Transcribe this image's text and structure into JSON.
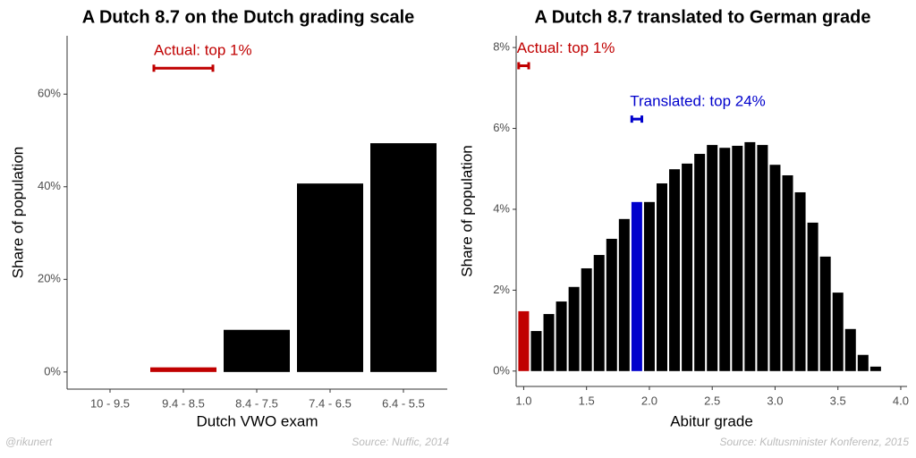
{
  "chart_data": [
    {
      "type": "bar",
      "title": "A Dutch 8.7 on the Dutch grading scale",
      "xlabel": "Dutch VWO exam",
      "ylabel": "Share of population",
      "categories": [
        "10 - 9.5",
        "9.4 - 8.5",
        "8.4 - 7.5",
        "7.4 - 6.5",
        "6.4 - 5.5"
      ],
      "values": [
        0,
        1,
        9.1,
        40.7,
        49.4
      ],
      "colors": [
        "#000000",
        "#c00000",
        "#000000",
        "#000000",
        "#000000"
      ],
      "ylim": [
        -3.7,
        72.6
      ],
      "yticks": [
        {
          "value": 0,
          "label": "0%"
        },
        {
          "value": 20,
          "label": "20%"
        },
        {
          "value": 40,
          "label": "40%"
        },
        {
          "value": 60,
          "label": "60%"
        }
      ],
      "annotations": [
        {
          "text": "Actual: top 1%",
          "color": "#c00000",
          "category": "9.4 - 8.5",
          "y": 65.6
        }
      ]
    },
    {
      "type": "histbar",
      "title": "A Dutch 8.7 translated to German grade",
      "xlabel": "Abitur grade",
      "ylabel": "Share of population",
      "x": [
        1.0,
        1.1,
        1.2,
        1.3,
        1.4,
        1.5,
        1.6,
        1.7,
        1.8,
        1.9,
        2.0,
        2.1,
        2.2,
        2.3,
        2.4,
        2.5,
        2.6,
        2.7,
        2.8,
        2.9,
        3.0,
        3.1,
        3.2,
        3.3,
        3.4,
        3.5,
        3.6,
        3.7,
        3.8
      ],
      "values": [
        1.48,
        0.99,
        1.41,
        1.72,
        2.08,
        2.54,
        2.87,
        3.27,
        3.76,
        4.18,
        4.18,
        4.64,
        4.99,
        5.13,
        5.37,
        5.59,
        5.52,
        5.57,
        5.66,
        5.59,
        5.1,
        4.84,
        4.42,
        3.67,
        2.83,
        1.94,
        1.04,
        0.4,
        0.11
      ],
      "colors": [
        "#c00000",
        "#000000",
        "#000000",
        "#000000",
        "#000000",
        "#000000",
        "#000000",
        "#000000",
        "#000000",
        "#0000cc",
        "#000000",
        "#000000",
        "#000000",
        "#000000",
        "#000000",
        "#000000",
        "#000000",
        "#000000",
        "#000000",
        "#000000",
        "#000000",
        "#000000",
        "#000000",
        "#000000",
        "#000000",
        "#000000",
        "#000000",
        "#000000",
        "#000000"
      ],
      "xlim": [
        0.94,
        4.05
      ],
      "ylim": [
        -0.38,
        8.29
      ],
      "xticks": [
        {
          "value": 1,
          "label": "1.0"
        },
        1.5,
        {
          "value": 2,
          "label": "2.0"
        },
        2.5,
        {
          "value": 3,
          "label": "3.0"
        },
        3.5,
        {
          "value": 4,
          "label": "4.0"
        }
      ],
      "yticks": [
        {
          "value": 0,
          "label": "0%"
        },
        {
          "value": 2,
          "label": "2%"
        },
        {
          "value": 4,
          "label": "4%"
        },
        {
          "value": 6,
          "label": "6%"
        },
        {
          "value": 8,
          "label": "8%"
        }
      ],
      "annotations": [
        {
          "text": "Actual: top 1%",
          "color": "#c00000",
          "x": [
            0.96,
            1.04
          ],
          "y": 7.55
        },
        {
          "text": "Translated: top 24%",
          "color": "#0000cc",
          "x": [
            1.86,
            1.94
          ],
          "y": 6.23
        }
      ]
    }
  ],
  "footer": {
    "author": "@rikunert",
    "sources": [
      "Source: Nuffic, 2014",
      "Source: Kultusminister Konferenz, 2015"
    ]
  }
}
